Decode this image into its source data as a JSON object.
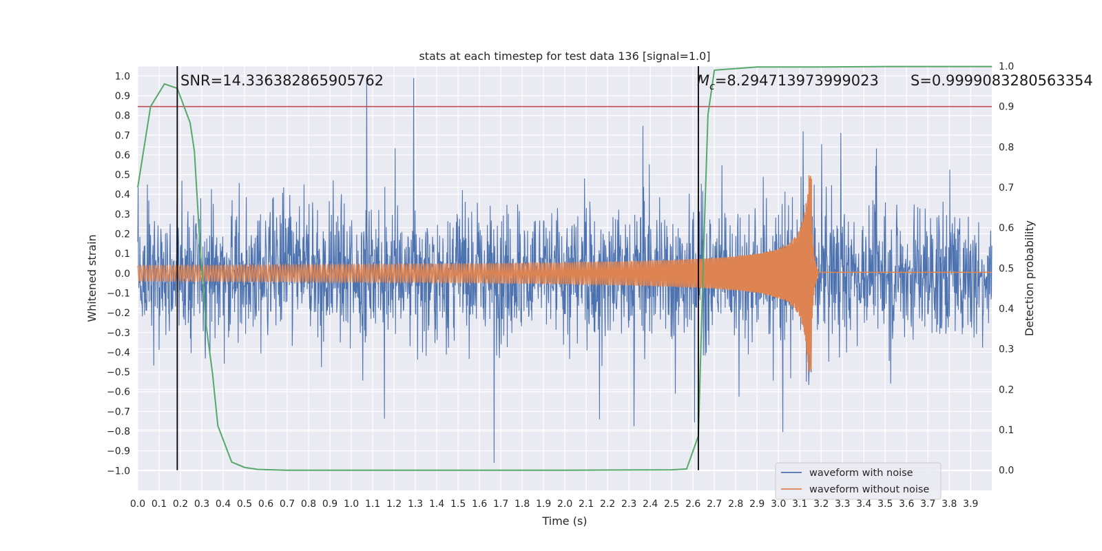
{
  "chart_data": {
    "type": "line",
    "title": "stats at each timestep for test data 136 [signal=1.0]",
    "xlabel": "Time (s)",
    "ylabel": "Whitened strain",
    "y2label": "Detection probability",
    "xlim": [
      0.0,
      3.999
    ],
    "ylim": [
      -1.1,
      1.05
    ],
    "y2lim": [
      -0.05,
      1.0
    ],
    "x_ticks": [
      "0.0",
      "0.1",
      "0.2",
      "0.3",
      "0.4",
      "0.5",
      "0.6",
      "0.7",
      "0.8",
      "0.9",
      "1.0",
      "1.1",
      "1.2",
      "1.3",
      "1.4",
      "1.5",
      "1.6",
      "1.7",
      "1.8",
      "1.9",
      "2.0",
      "2.1",
      "2.2",
      "2.3",
      "2.4",
      "2.5",
      "2.6",
      "2.7",
      "2.8",
      "2.9",
      "3.0",
      "3.1",
      "3.2",
      "3.3",
      "3.4",
      "3.5",
      "3.6",
      "3.7",
      "3.8",
      "3.9"
    ],
    "y_ticks": [
      "1.0",
      "0.9",
      "0.8",
      "0.7",
      "0.6",
      "0.5",
      "0.4",
      "0.3",
      "0.2",
      "0.1",
      "0.0",
      "−0.1",
      "−0.2",
      "−0.3",
      "−0.4",
      "−0.5",
      "−0.6",
      "−0.7",
      "−0.8",
      "−0.9",
      "−1.0"
    ],
    "y2_ticks": [
      "1.0",
      "0.9",
      "0.8",
      "0.7",
      "0.6",
      "0.5",
      "0.4",
      "0.3",
      "0.2",
      "0.1",
      "0.0"
    ],
    "grid": true,
    "legend_placement": "lower-right",
    "threshold_y2": 0.9,
    "vlines_x": [
      0.185,
      2.625
    ],
    "annotations": {
      "snr": "SNR=14.336382865905762",
      "mc_symbol": "M",
      "mc_sub": "c",
      "mc_value": "=8.294713973999023",
      "s": "S=0.9999083280563354"
    },
    "series": [
      {
        "name": "waveform with noise",
        "color": "#4c72b0",
        "description_values": "whitened strain noise, amplitude mostly within ±0.45 with spikes to about ±1.0"
      },
      {
        "name": "waveform without noise",
        "color": "#dd8452",
        "chirp": {
          "start_x": 0.0,
          "merger_x": 3.155,
          "start_amp": 0.035,
          "peak_amp": 0.5,
          "post_merger_value": 0.005
        }
      },
      {
        "name": "detection probability",
        "color": "#55a868",
        "axis": "right",
        "x": [
          0.0,
          0.06,
          0.125,
          0.185,
          0.245,
          0.265,
          0.29,
          0.32,
          0.35,
          0.375,
          0.44,
          0.5,
          0.56,
          0.7,
          1.0,
          1.5,
          2.0,
          2.5,
          2.57,
          2.625,
          2.65,
          2.67,
          2.7,
          2.9,
          3.2,
          3.5,
          4.0
        ],
        "y": [
          0.7,
          0.9,
          0.956,
          0.945,
          0.86,
          0.79,
          0.57,
          0.36,
          0.24,
          0.11,
          0.02,
          0.007,
          0.002,
          0.0,
          0.0,
          0.0,
          0.0,
          0.001,
          0.003,
          0.085,
          0.55,
          0.88,
          0.99,
          0.998,
          0.998,
          0.999,
          0.999
        ]
      }
    ]
  },
  "colors": {
    "plot_bg": "#eaeaf2",
    "grid": "#ffffff",
    "noise": "#4c72b0",
    "clean": "#dd8452",
    "prob": "#55a868",
    "threshold": "#c44e52",
    "vline": "#000000"
  }
}
